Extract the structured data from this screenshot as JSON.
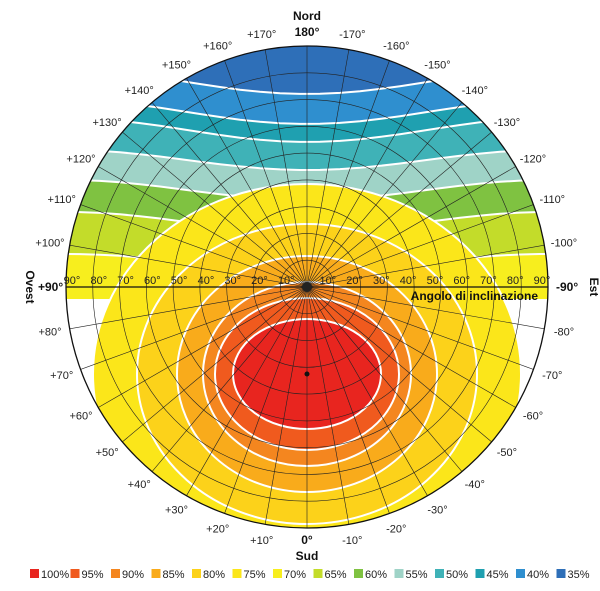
{
  "chart_data": {
    "type": "heatmap",
    "title": "",
    "compass": {
      "north": "Nord",
      "south": "Sud",
      "west": "Ovest",
      "east": "Est"
    },
    "azimuth_top": "180°",
    "azimuth_bottom": "0°",
    "west_value": "+90°",
    "east_value": "-90°",
    "tilt_axis_label": "Angolo di inclinazione",
    "azimuth_labels_west": [
      "+10°",
      "+20°",
      "+30°",
      "+40°",
      "+50°",
      "+60°",
      "+70°",
      "+80°",
      "+100°",
      "+110°",
      "+120°",
      "+130°",
      "+140°",
      "+150°",
      "+160°",
      "+170°"
    ],
    "azimuth_labels_east": [
      "-10°",
      "-20°",
      "-30°",
      "-40°",
      "-50°",
      "-60°",
      "-70°",
      "-80°",
      "-100°",
      "-110°",
      "-120°",
      "-130°",
      "-140°",
      "-150°",
      "-160°",
      "-170°"
    ],
    "tilt_ticks_west": [
      "90°",
      "80°",
      "70°",
      "60°",
      "50°",
      "40°",
      "30°",
      "20°",
      "10°"
    ],
    "tilt_ticks_east": [
      "10°",
      "20°",
      "30°",
      "40°",
      "50°",
      "60°",
      "70°",
      "80°",
      "90°"
    ],
    "legend": [
      {
        "label": "100%",
        "color": "#e8251f"
      },
      {
        "label": "95%",
        "color": "#f05a1e"
      },
      {
        "label": "90%",
        "color": "#f4861f"
      },
      {
        "label": "85%",
        "color": "#f9ab1b"
      },
      {
        "label": "80%",
        "color": "#fcd21a"
      },
      {
        "label": "75%",
        "color": "#fbe61a"
      },
      {
        "label": "70%",
        "color": "#f7ee1e"
      },
      {
        "label": "65%",
        "color": "#c3dc2a"
      },
      {
        "label": "60%",
        "color": "#7fc241"
      },
      {
        "label": "55%",
        "color": "#9fd3c7"
      },
      {
        "label": "50%",
        "color": "#3fb2b7"
      },
      {
        "label": "45%",
        "color": "#1fa0b0"
      },
      {
        "label": "40%",
        "color": "#2f8fcf"
      },
      {
        "label": "35%",
        "color": "#2e6fb8"
      }
    ],
    "optimum": {
      "azimuth_deg": 0,
      "tilt_deg": 30,
      "value_percent": 100
    }
  }
}
